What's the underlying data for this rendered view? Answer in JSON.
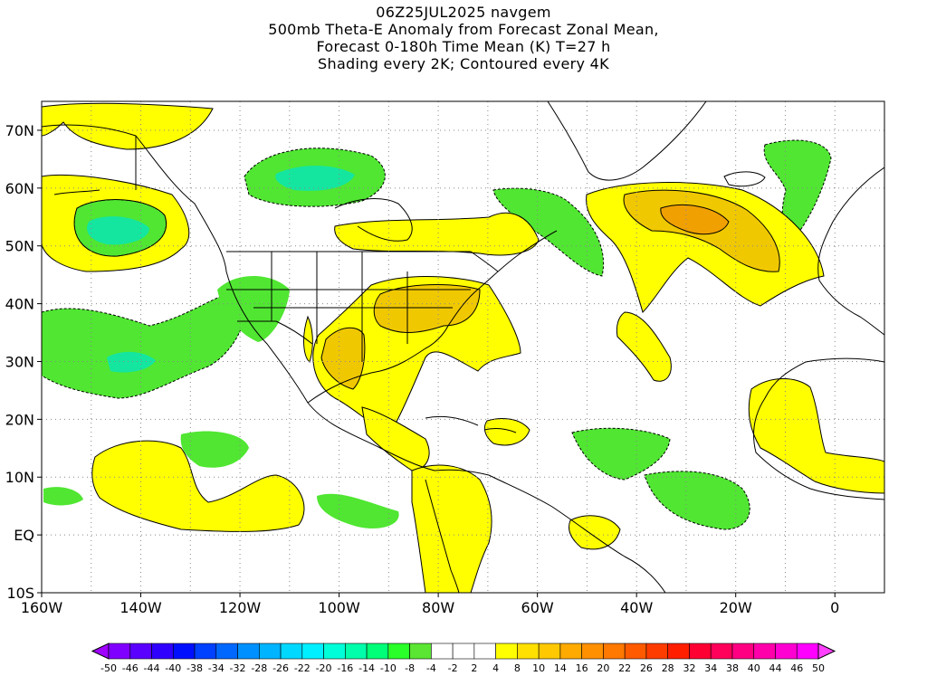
{
  "title": {
    "line1": "06Z25JUL2025 navgem",
    "line2": "500mb Theta-E Anomaly from Forecast Zonal Mean,",
    "line3": "Forecast 0-180h Time Mean (K) T=27 h",
    "line4": "Shading every 2K; Contoured every 4K"
  },
  "axes": {
    "lon_labels": [
      "160W",
      "140W",
      "120W",
      "100W",
      "80W",
      "60W",
      "40W",
      "20W",
      "0"
    ],
    "lat_labels": [
      "70N",
      "60N",
      "50N",
      "40N",
      "30N",
      "20N",
      "10N",
      "EQ",
      "10S"
    ],
    "lon_range": [
      -160,
      10
    ],
    "lat_range": [
      -10,
      75
    ],
    "grid": true
  },
  "colorbar": {
    "labels": [
      "-50",
      "-46",
      "-44",
      "-40",
      "-38",
      "-34",
      "-32",
      "-28",
      "-26",
      "-22",
      "-20",
      "-16",
      "-14",
      "-10",
      "-8",
      "-4",
      "-2",
      "2",
      "4",
      "8",
      "10",
      "14",
      "16",
      "20",
      "22",
      "26",
      "28",
      "32",
      "34",
      "38",
      "40",
      "44",
      "46",
      "50"
    ],
    "colors": [
      "#a000ff",
      "#8000ff",
      "#5a00ff",
      "#3000ff",
      "#0010ff",
      "#0040ff",
      "#0068ff",
      "#0090ff",
      "#00b4ff",
      "#00d8ff",
      "#00f0ff",
      "#00ffd8",
      "#00ffaa",
      "#00ff78",
      "#2aff2a",
      "#5ae632",
      "#ffffff",
      "#ffffff",
      "#ffffff",
      "#ffff00",
      "#ffe000",
      "#ffc800",
      "#ffaa00",
      "#ff9000",
      "#ff7800",
      "#ff5a00",
      "#ff3c00",
      "#ff1e00",
      "#ff0032",
      "#ff005a",
      "#ff0082",
      "#ff00aa",
      "#ff00d2",
      "#ff00ff",
      "#ff40ff"
    ]
  },
  "fields": {
    "positive_color_1": "#ffff00",
    "positive_color_2": "#f0c800",
    "positive_color_3": "#f0a000",
    "negative_color_1": "#50e632",
    "negative_color_2": "#14e6a0"
  }
}
